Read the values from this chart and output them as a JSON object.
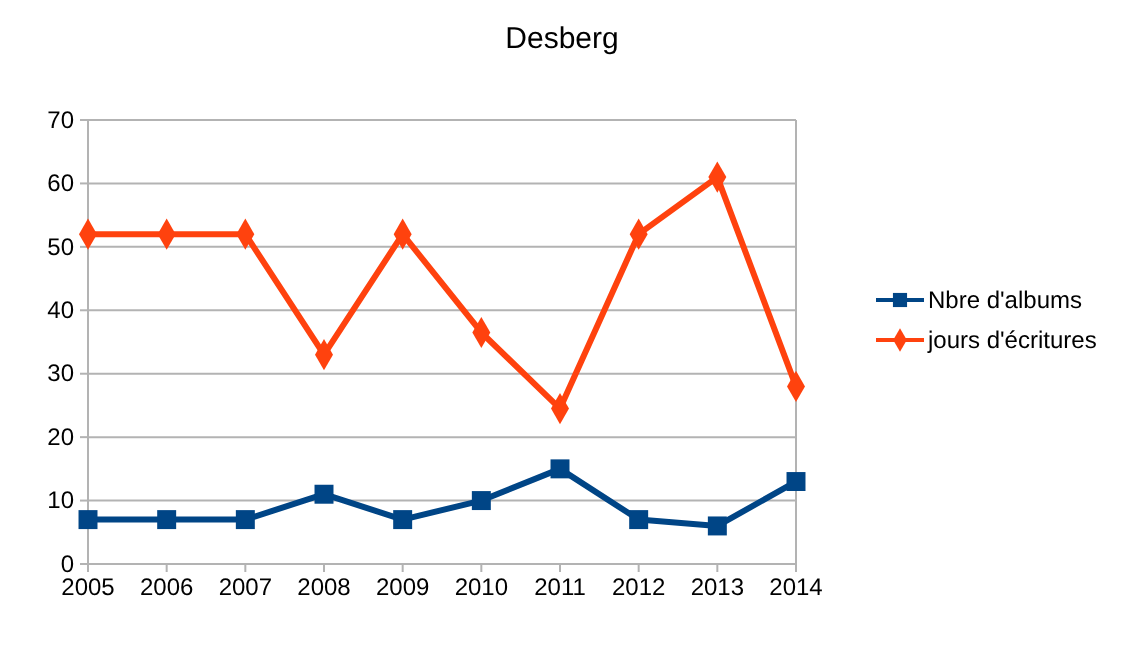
{
  "chart_data": {
    "type": "line",
    "title": "Desberg",
    "x": [
      2005,
      2006,
      2007,
      2008,
      2009,
      2010,
      2011,
      2012,
      2013,
      2014
    ],
    "xlim": [
      2005,
      2014
    ],
    "xticks": [
      2005,
      2006,
      2007,
      2008,
      2009,
      2010,
      2011,
      2012,
      2013,
      2014
    ],
    "ylim": [
      0,
      70
    ],
    "yticks": [
      0,
      10,
      20,
      30,
      40,
      50,
      60,
      70
    ],
    "grid": "y",
    "legend": "right",
    "series": [
      {
        "name": "Nbre d'albums",
        "color": "#004586",
        "marker": "square",
        "values": [
          7,
          7,
          7,
          11,
          7,
          10,
          15,
          7,
          6,
          13
        ]
      },
      {
        "name": "jours d'écritures",
        "color": "#ff420e",
        "marker": "diamond",
        "values": [
          52,
          52,
          52,
          33,
          52,
          36.5,
          24.5,
          52,
          61,
          28
        ]
      }
    ]
  }
}
